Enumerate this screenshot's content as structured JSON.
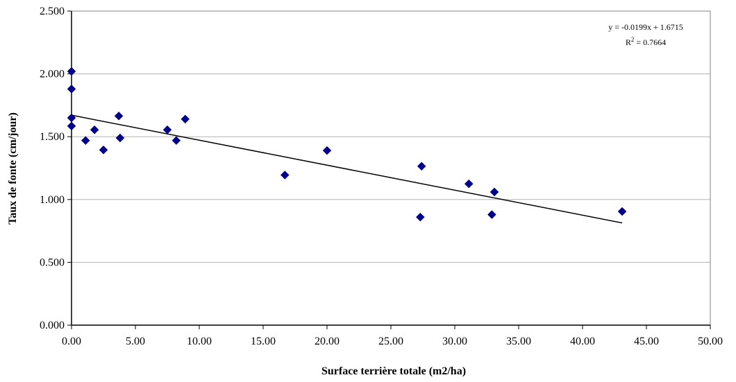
{
  "chart_data": {
    "type": "scatter",
    "xlabel": "Surface terrière totale (m2/ha)",
    "ylabel": "Taux de fonte (cm/jour)",
    "xlim": [
      0,
      50
    ],
    "ylim": [
      0,
      2.5
    ],
    "x_ticks": [
      "0.00",
      "5.00",
      "10.00",
      "15.00",
      "20.00",
      "25.00",
      "30.00",
      "35.00",
      "40.00",
      "45.00",
      "50.00"
    ],
    "y_ticks": [
      "0.000",
      "0.500",
      "1.000",
      "1.500",
      "2.000",
      "2.500"
    ],
    "grid": "horizontal",
    "marker": "diamond",
    "marker_color": "#00008B",
    "points": [
      {
        "x": 0.0,
        "y": 2.02
      },
      {
        "x": 0.0,
        "y": 1.88
      },
      {
        "x": 0.0,
        "y": 1.65
      },
      {
        "x": 0.0,
        "y": 1.585
      },
      {
        "x": 1.1,
        "y": 1.47
      },
      {
        "x": 1.8,
        "y": 1.555
      },
      {
        "x": 2.5,
        "y": 1.395
      },
      {
        "x": 3.7,
        "y": 1.665
      },
      {
        "x": 3.8,
        "y": 1.49
      },
      {
        "x": 7.5,
        "y": 1.555
      },
      {
        "x": 8.2,
        "y": 1.47
      },
      {
        "x": 8.9,
        "y": 1.64
      },
      {
        "x": 16.7,
        "y": 1.195
      },
      {
        "x": 20.0,
        "y": 1.39
      },
      {
        "x": 27.3,
        "y": 0.86
      },
      {
        "x": 27.4,
        "y": 1.265
      },
      {
        "x": 31.1,
        "y": 1.125
      },
      {
        "x": 32.9,
        "y": 0.88
      },
      {
        "x": 33.1,
        "y": 1.06
      },
      {
        "x": 43.1,
        "y": 0.905
      }
    ],
    "trendline": {
      "slope": -0.0199,
      "intercept": 1.6715,
      "x_range": [
        0,
        43.1
      ],
      "equation": "y = -0.0199x + 1.6715",
      "r2_prefix": "R",
      "r2_sup": "2",
      "r2_value": " = 0.7664"
    }
  }
}
